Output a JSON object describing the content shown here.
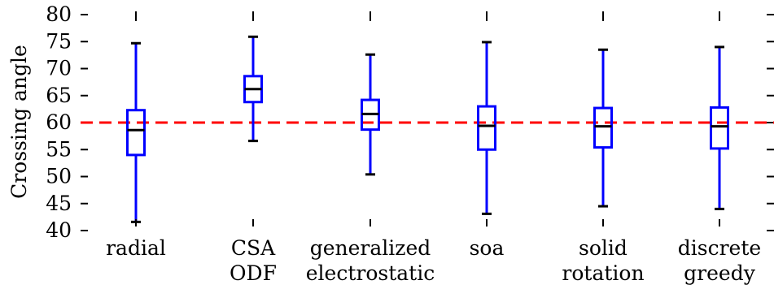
{
  "chart_data": {
    "type": "box",
    "ylabel": "Crossing angle",
    "xlabel": "",
    "title": "",
    "ylim": [
      40,
      80
    ],
    "yticks": [
      40,
      45,
      50,
      55,
      60,
      65,
      70,
      75,
      80
    ],
    "reference_line": {
      "y": 60,
      "color": "#ff0000",
      "style": "dashed"
    },
    "box_color": "#0000ff",
    "median_color": "#000000",
    "grid": false,
    "categories": [
      {
        "lines": [
          "radial"
        ],
        "whisker_low": 41.6,
        "q1": 54.0,
        "median": 58.6,
        "q3": 62.3,
        "whisker_high": 74.7
      },
      {
        "lines": [
          "CSA",
          "ODF"
        ],
        "whisker_low": 56.6,
        "q1": 63.8,
        "median": 66.2,
        "q3": 68.6,
        "whisker_high": 75.9
      },
      {
        "lines": [
          "generalized",
          "electrostatic"
        ],
        "whisker_low": 50.4,
        "q1": 58.7,
        "median": 61.6,
        "q3": 64.2,
        "whisker_high": 72.6
      },
      {
        "lines": [
          "soa"
        ],
        "whisker_low": 43.1,
        "q1": 55.0,
        "median": 59.4,
        "q3": 63.0,
        "whisker_high": 74.9
      },
      {
        "lines": [
          "solid",
          "rotation"
        ],
        "whisker_low": 44.5,
        "q1": 55.4,
        "median": 59.3,
        "q3": 62.7,
        "whisker_high": 73.5
      },
      {
        "lines": [
          "discrete",
          "greedy"
        ],
        "whisker_low": 44.0,
        "q1": 55.2,
        "median": 59.3,
        "q3": 62.8,
        "whisker_high": 74.0
      }
    ]
  }
}
